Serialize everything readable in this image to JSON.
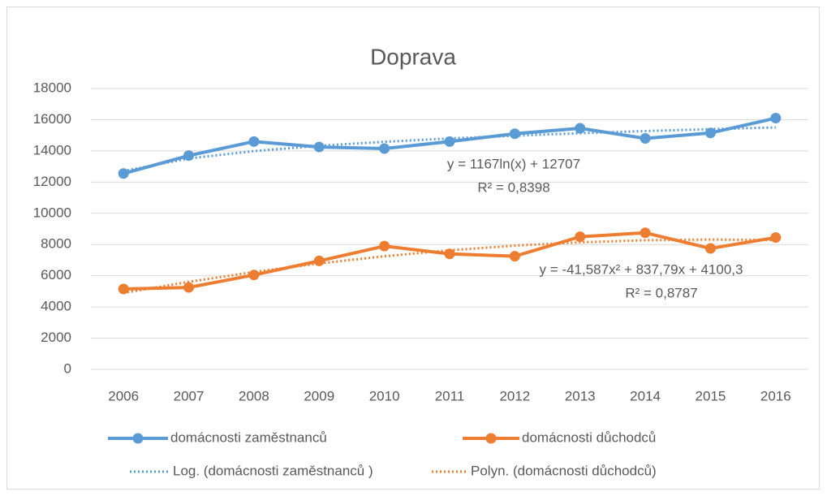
{
  "chart_data": {
    "type": "line",
    "title": "Doprava",
    "categories": [
      "2006",
      "2007",
      "2008",
      "2009",
      "2010",
      "2011",
      "2012",
      "2013",
      "2014",
      "2015",
      "2016"
    ],
    "series": [
      {
        "name": "domácnosti zaměstnanců",
        "color": "#5b9bd5",
        "marker": true,
        "line_style": "solid",
        "values": [
          12550,
          13700,
          14600,
          14250,
          14150,
          14600,
          15100,
          15450,
          14800,
          15150,
          16100
        ]
      },
      {
        "name": "domácnosti důchodců",
        "color": "#ed7d31",
        "marker": true,
        "line_style": "solid",
        "values": [
          5150,
          5250,
          6050,
          6950,
          7900,
          7400,
          7250,
          8500,
          8750,
          7750,
          8450
        ]
      },
      {
        "name": "Log. (domácnosti zaměstnanců )",
        "color": "#5b9bd5",
        "marker": false,
        "line_style": "dotted",
        "values": [
          12707,
          13516,
          13989,
          14325,
          14585,
          14798,
          14978,
          15134,
          15271,
          15394,
          15505
        ]
      },
      {
        "name": "Polyn. (domácnosti důchodců)",
        "color": "#ed7d31",
        "marker": false,
        "line_style": "dotted",
        "values": [
          4897,
          5610,
          6239,
          6786,
          7250,
          7630,
          7928,
          8142,
          8273,
          8321,
          8285
        ]
      }
    ],
    "annotations": [
      "y = 1167ln(x) + 12707",
      "R² = 0,8398",
      "y = -41,587x² + 837,79x + 4100,3",
      "R² = 0,8787"
    ],
    "ylim": [
      0,
      18000
    ],
    "yticks": [
      0,
      2000,
      4000,
      6000,
      8000,
      10000,
      12000,
      14000,
      16000,
      18000
    ],
    "grid": true,
    "legend": "bottom"
  }
}
